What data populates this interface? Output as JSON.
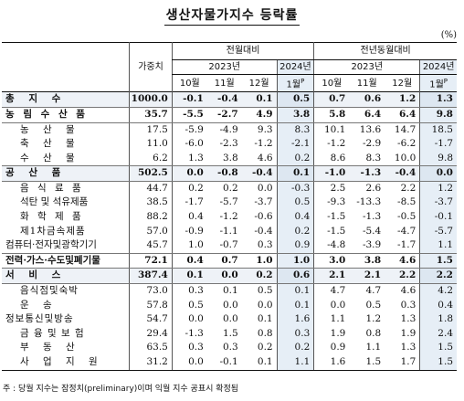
{
  "title": "생산자물가지수 등락률",
  "unit": "(%)",
  "header": {
    "weight": "가중치",
    "mom": "전월대비",
    "yoy": "전년동월대비",
    "y2023": "2023년",
    "y2024": "2024년",
    "months": [
      "10월",
      "11월",
      "12월",
      "1월"
    ],
    "prelim_mark": "P"
  },
  "rows": [
    {
      "label": "총 지 수",
      "w": "1000.0",
      "v": [
        "-0.1",
        "-0.4",
        "0.1",
        "0.5",
        "0.7",
        "0.6",
        "1.2",
        "1.3"
      ]
    },
    {
      "label": "농 림 수 산 품",
      "w": "35.7",
      "v": [
        "-5.5",
        "-2.7",
        "4.9",
        "3.8",
        "5.8",
        "6.4",
        "6.4",
        "9.8"
      ]
    },
    {
      "label": "농 산 물",
      "w": "17.5",
      "v": [
        "-5.9",
        "-4.9",
        "9.3",
        "8.3",
        "10.1",
        "13.6",
        "14.7",
        "18.5"
      ]
    },
    {
      "label": "축 산 물",
      "w": "11.0",
      "v": [
        "-6.0",
        "-2.3",
        "-1.2",
        "-2.1",
        "-1.2",
        "-2.9",
        "-6.2",
        "-1.7"
      ]
    },
    {
      "label": "수 산 물",
      "w": "6.2",
      "v": [
        "1.3",
        "3.8",
        "4.6",
        "0.2",
        "8.6",
        "8.3",
        "10.0",
        "9.8"
      ]
    },
    {
      "label": "공 산 품",
      "w": "502.5",
      "v": [
        "0.0",
        "-0.8",
        "-0.4",
        "0.1",
        "-1.0",
        "-1.3",
        "-0.4",
        "0.0"
      ]
    },
    {
      "label": "음 식 료 품",
      "w": "44.7",
      "v": [
        "0.2",
        "0.2",
        "0.0",
        "-0.3",
        "2.5",
        "2.6",
        "2.2",
        "1.2"
      ]
    },
    {
      "label": "석탄 및 석유제품",
      "w": "38.5",
      "v": [
        "-1.7",
        "-5.7",
        "-3.7",
        "0.5",
        "-9.3",
        "-13.3",
        "-8.5",
        "-3.7"
      ]
    },
    {
      "label": "화 학 제 품",
      "w": "88.2",
      "v": [
        "0.4",
        "-1.2",
        "-0.6",
        "0.4",
        "-1.5",
        "-1.3",
        "-0.5",
        "-0.1"
      ]
    },
    {
      "label": "제1차금속제품",
      "w": "57.0",
      "v": [
        "-0.9",
        "-1.1",
        "-0.4",
        "0.2",
        "-1.5",
        "-5.4",
        "-4.7",
        "-5.7"
      ]
    },
    {
      "label": "컴퓨터·전자및광학기기",
      "w": "45.7",
      "v": [
        "1.0",
        "-0.7",
        "0.3",
        "0.9",
        "-4.8",
        "-3.9",
        "-1.7",
        "1.1"
      ]
    },
    {
      "label": "전력·가스·수도및폐기물",
      "w": "72.1",
      "v": [
        "0.4",
        "0.7",
        "1.0",
        "1.0",
        "3.0",
        "3.8",
        "4.6",
        "1.5"
      ]
    },
    {
      "label": "서 비 스",
      "w": "387.4",
      "v": [
        "0.1",
        "0.0",
        "0.2",
        "0.6",
        "2.1",
        "2.1",
        "2.2",
        "2.2"
      ]
    },
    {
      "label": "음식점및숙박",
      "w": "73.0",
      "v": [
        "0.3",
        "0.1",
        "0.5",
        "0.1",
        "4.7",
        "4.7",
        "4.6",
        "4.2"
      ]
    },
    {
      "label": "운 송",
      "w": "57.8",
      "v": [
        "0.5",
        "0.0",
        "0.0",
        "0.1",
        "0.0",
        "0.5",
        "0.3",
        "0.4"
      ]
    },
    {
      "label": "정보통신및방송",
      "w": "54.7",
      "v": [
        "0.0",
        "0.0",
        "0.1",
        "1.6",
        "1.1",
        "1.2",
        "1.3",
        "1.8"
      ]
    },
    {
      "label": "금 융 및 보 험",
      "w": "29.4",
      "v": [
        "-1.3",
        "1.5",
        "0.8",
        "0.3",
        "1.9",
        "0.8",
        "1.9",
        "2.4"
      ]
    },
    {
      "label": "부 동 산",
      "w": "63.5",
      "v": [
        "0.3",
        "0.3",
        "0.2",
        "0.2",
        "0.9",
        "1.1",
        "1.3",
        "1.5"
      ]
    },
    {
      "label": "사 업 지 원",
      "w": "31.2",
      "v": [
        "0.0",
        "-0.1",
        "0.1",
        "1.1",
        "1.6",
        "1.5",
        "1.7",
        "1.5"
      ]
    }
  ],
  "note": "주 : 당월 지수는 잠정치(preliminary)이며 익월 지수 공표시 확정됨"
}
